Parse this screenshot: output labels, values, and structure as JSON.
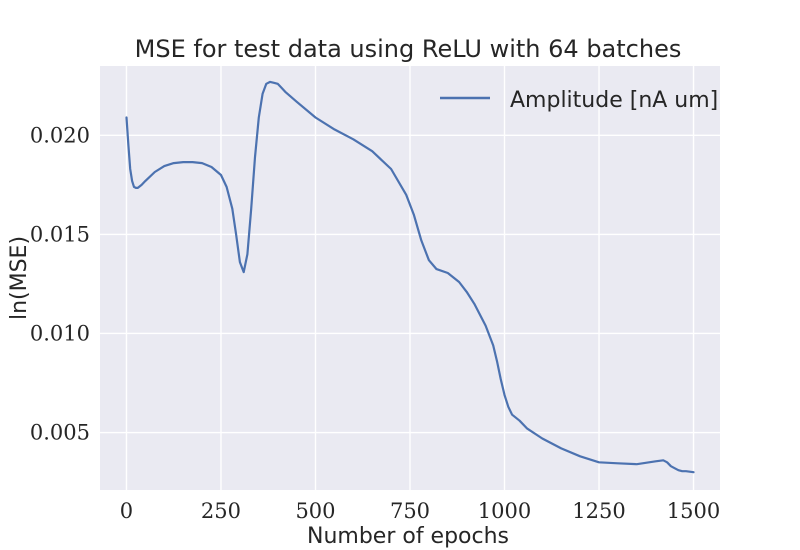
{
  "chart_data": {
    "type": "line",
    "title": "MSE for test data using ReLU with 64 batches",
    "xlabel": "Number of epochs",
    "ylabel": "ln(MSE)",
    "xlim": [
      -70,
      1570
    ],
    "ylim": [
      0.0021,
      0.0235
    ],
    "xticks": [
      0,
      250,
      500,
      750,
      1000,
      1250,
      1500
    ],
    "xtick_labels": [
      "0",
      "250",
      "500",
      "750",
      "1000",
      "1250",
      "1500"
    ],
    "yticks": [
      0.005,
      0.01,
      0.015,
      0.02
    ],
    "ytick_labels": [
      "0.005",
      "0.010",
      "0.015",
      "0.020"
    ],
    "grid": true,
    "legend_position": "top-right",
    "series": [
      {
        "name": "Amplitude [nA um]",
        "color": "#4c72b0",
        "x": [
          0,
          5,
          10,
          15,
          20,
          25,
          30,
          40,
          50,
          75,
          100,
          125,
          150,
          175,
          200,
          225,
          250,
          265,
          280,
          290,
          300,
          310,
          320,
          330,
          340,
          350,
          360,
          370,
          380,
          390,
          400,
          410,
          420,
          450,
          500,
          550,
          600,
          650,
          700,
          740,
          760,
          780,
          800,
          820,
          850,
          880,
          900,
          920,
          950,
          970,
          980,
          990,
          1000,
          1010,
          1020,
          1040,
          1060,
          1100,
          1150,
          1200,
          1250,
          1300,
          1350,
          1400,
          1420,
          1430,
          1440,
          1450,
          1460,
          1470,
          1480,
          1500
        ],
        "y": [
          0.0209,
          0.0195,
          0.0183,
          0.0177,
          0.0174,
          0.01735,
          0.01735,
          0.0175,
          0.0177,
          0.01815,
          0.01845,
          0.0186,
          0.01865,
          0.01865,
          0.0186,
          0.0184,
          0.018,
          0.0174,
          0.0163,
          0.015,
          0.0136,
          0.0131,
          0.014,
          0.0163,
          0.0189,
          0.0209,
          0.0221,
          0.0226,
          0.0227,
          0.02265,
          0.0226,
          0.0224,
          0.0222,
          0.0217,
          0.0209,
          0.0203,
          0.0198,
          0.0192,
          0.0183,
          0.017,
          0.016,
          0.0147,
          0.0137,
          0.01325,
          0.01305,
          0.0126,
          0.0121,
          0.0115,
          0.0104,
          0.0094,
          0.0086,
          0.0077,
          0.0069,
          0.0063,
          0.0059,
          0.0056,
          0.0052,
          0.0047,
          0.0042,
          0.0038,
          0.0035,
          0.00345,
          0.0034,
          0.00355,
          0.0036,
          0.0035,
          0.0033,
          0.0032,
          0.0031,
          0.00305,
          0.00305,
          0.003
        ]
      }
    ]
  }
}
